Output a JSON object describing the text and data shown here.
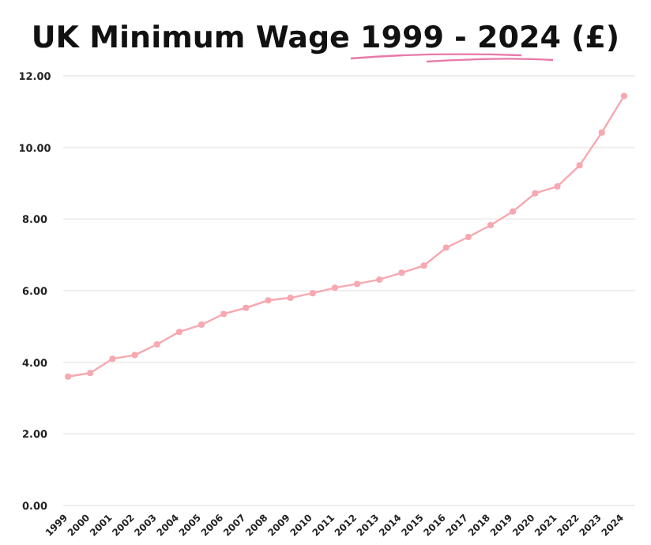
{
  "chart_data": {
    "type": "line",
    "title": "UK Minimum Wage 1999 - 2024 (£)",
    "categories": [
      "1999",
      "2000",
      "2001",
      "2002",
      "2003",
      "2004",
      "2005",
      "2006",
      "2007",
      "2008",
      "2009",
      "2010",
      "2011",
      "2012",
      "2013",
      "2014",
      "2015",
      "2016",
      "2017",
      "2018",
      "2019",
      "2020",
      "2021",
      "2022",
      "2023",
      "2024"
    ],
    "series": [
      {
        "color": "#f7a8b0",
        "values": [
          3.6,
          3.7,
          4.1,
          4.2,
          4.5,
          4.85,
          5.05,
          5.35,
          5.52,
          5.73,
          5.8,
          5.93,
          6.08,
          6.19,
          6.31,
          6.5,
          6.7,
          7.2,
          7.5,
          7.83,
          8.21,
          8.72,
          8.91,
          9.5,
          10.42,
          11.44
        ]
      }
    ],
    "ylim": [
      0,
      12
    ],
    "yticks": [
      {
        "value": 0,
        "label": "0.00"
      },
      {
        "value": 2,
        "label": "2.00"
      },
      {
        "value": 4,
        "label": "4.00"
      },
      {
        "value": 6,
        "label": "6.00"
      },
      {
        "value": 8,
        "label": "8.00"
      },
      {
        "value": 10,
        "label": "10.00"
      },
      {
        "value": 12,
        "label": "12.00"
      }
    ],
    "grid": "y",
    "marker": "circle",
    "line_style": "solid"
  }
}
